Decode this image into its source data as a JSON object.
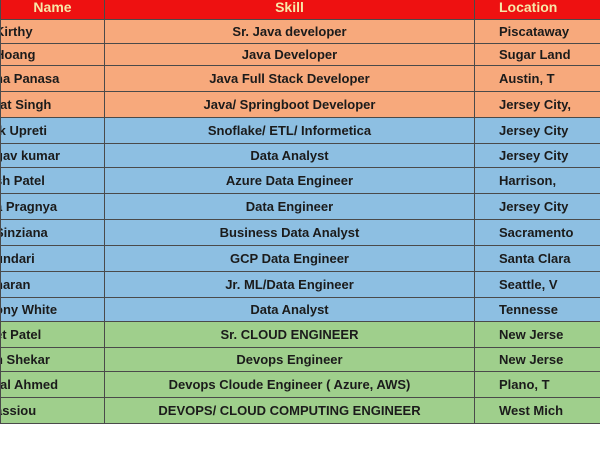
{
  "headers": {
    "name": "Name",
    "skill": "Skill",
    "location": "Location"
  },
  "rows": [
    {
      "name": "Kirthy",
      "skill": "Sr. Java developer",
      "location": "Piscataway",
      "group": "orange"
    },
    {
      "name": "Hoang",
      "skill": "Java Developer",
      "location": "Sugar Land",
      "group": "orange"
    },
    {
      "name": "na Panasa",
      "skill": "Java Full Stack Developer",
      "location": "Austin, T",
      "group": "orange"
    },
    {
      "name": "rat Singh",
      "skill": "Java/ Springboot Developer",
      "location": "Jersey City,",
      "group": "orange"
    },
    {
      "name": "ik Upreti",
      "skill": "Snoflake/ ETL/ Informetica",
      "location": "Jersey City",
      "group": "blue"
    },
    {
      "name": "gav kumar",
      "skill": "Data Analyst",
      "location": "Jersey City",
      "group": "blue"
    },
    {
      "name": "sh Patel",
      "skill": "Azure Data Engineer",
      "location": "Harrison,",
      "group": "blue"
    },
    {
      "name": "a Pragnya",
      "skill": "Data Engineer",
      "location": "Jersey City",
      "group": "blue"
    },
    {
      "name": "Sinziana",
      "skill": "Business Data Analyst",
      "location": "Sacramento",
      "group": "blue"
    },
    {
      "name": "undari",
      "skill": "GCP Data Engineer",
      "location": "Santa Clara",
      "group": "blue"
    },
    {
      "name": "haran",
      "skill": "Jr. ML/Data Engineer",
      "location": "Seattle, V",
      "group": "blue"
    },
    {
      "name": "ony White",
      "skill": "Data Analyst",
      "location": "Tennesse",
      "group": "blue"
    },
    {
      "name": "et Patel",
      "skill": "Sr. CLOUD ENGINEER",
      "location": "New Jerse",
      "group": "green"
    },
    {
      "name": "h Shekar",
      "skill": "Devops Engineer",
      "location": "New Jerse",
      "group": "green"
    },
    {
      "name": "ral Ahmed",
      "skill": "Devops Cloude Engineer ( Azure, AWS)",
      "location": "Plano, T",
      "group": "green"
    },
    {
      "name": "assiou",
      "skill": "DEVOPS/ CLOUD COMPUTING ENGINEER",
      "location": "West Mich",
      "group": "green"
    }
  ],
  "colors": {
    "header": "#ee1111",
    "header_text": "#f7e7a8",
    "orange": "#f7a97c",
    "blue": "#8dbfe2",
    "green": "#9fcf8c"
  }
}
